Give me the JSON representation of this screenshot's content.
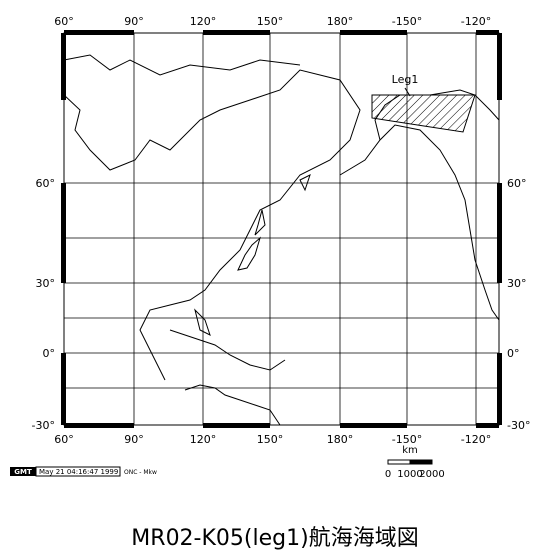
{
  "map": {
    "lon_labels": [
      "60°",
      "90°",
      "120°",
      "150°",
      "180°",
      "-150°",
      "-120°"
    ],
    "lat_labels": [
      "60°",
      "30°",
      "0°",
      "-30°"
    ],
    "track_label": "Leg1",
    "scale": {
      "unit": "km",
      "labels": [
        "0",
        "1000",
        "2000"
      ]
    },
    "stamp": {
      "logo": "GMT",
      "time": "May 21 04:16:47 1999",
      "note": "ONC - Mkw"
    },
    "title": "MR02-K05(leg1)航海海域図"
  }
}
